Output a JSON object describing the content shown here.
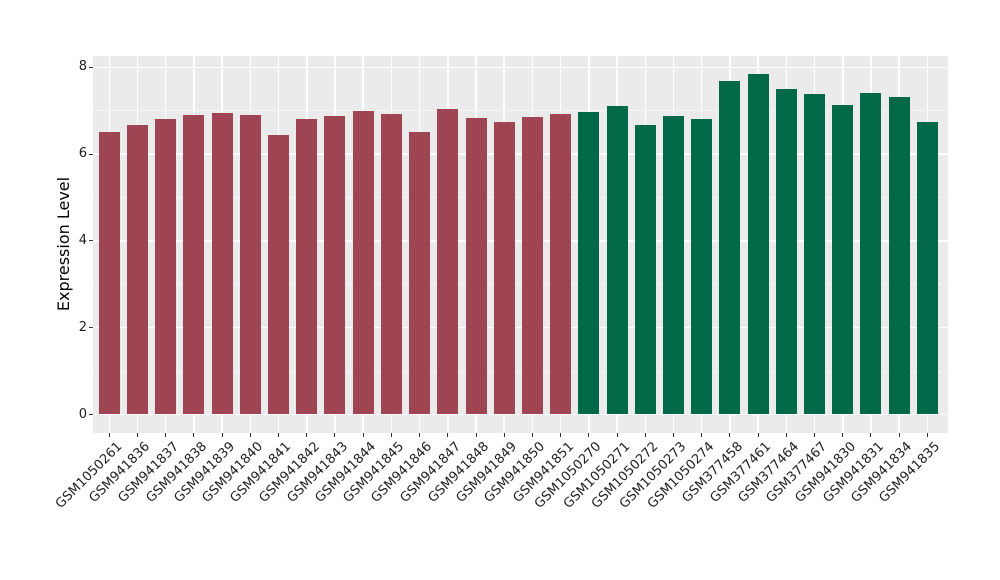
{
  "figure": {
    "y_axis_title": "Expression Level"
  },
  "chart_data": {
    "type": "bar",
    "title": "",
    "xlabel": "",
    "ylabel": "Expression Level",
    "ylim": [
      0,
      8
    ],
    "yticks": [
      0,
      2,
      4,
      6,
      8
    ],
    "yticks_minor": [
      1,
      3,
      5,
      7
    ],
    "grid": true,
    "legend_position": "none",
    "panel_background": "#EBEBEB",
    "gridline_color": "#FFFFFF",
    "axis_text_color": "#1F1F1F",
    "categories": [
      "GSM1050261",
      "GSM941836",
      "GSM941837",
      "GSM941838",
      "GSM941839",
      "GSM941840",
      "GSM941841",
      "GSM941842",
      "GSM941843",
      "GSM941844",
      "GSM941845",
      "GSM941846",
      "GSM941847",
      "GSM941848",
      "GSM941849",
      "GSM941850",
      "GSM941851",
      "GSM1050270",
      "GSM1050271",
      "GSM1050272",
      "GSM1050273",
      "GSM1050274",
      "GSM377458",
      "GSM377461",
      "GSM377464",
      "GSM377467",
      "GSM941830",
      "GSM941831",
      "GSM941834",
      "GSM941835"
    ],
    "values": [
      6.5,
      6.66,
      6.82,
      6.89,
      6.95,
      6.89,
      6.45,
      6.8,
      6.87,
      7.0,
      6.93,
      6.5,
      7.03,
      6.83,
      6.73,
      6.85,
      6.92,
      6.97,
      7.11,
      6.66,
      6.88,
      6.82,
      7.68,
      7.84,
      7.49,
      7.38,
      7.12,
      7.4,
      7.32,
      6.75
    ],
    "groups": [
      "group_1",
      "group_1",
      "group_1",
      "group_1",
      "group_1",
      "group_1",
      "group_1",
      "group_1",
      "group_1",
      "group_1",
      "group_1",
      "group_1",
      "group_1",
      "group_1",
      "group_1",
      "group_1",
      "group_1",
      "group_2",
      "group_2",
      "group_2",
      "group_2",
      "group_2",
      "group_2",
      "group_2",
      "group_2",
      "group_2",
      "group_2",
      "group_2",
      "group_2",
      "group_2"
    ],
    "group_colors": {
      "group_1": "#9E4452",
      "group_2": "#016948"
    }
  }
}
